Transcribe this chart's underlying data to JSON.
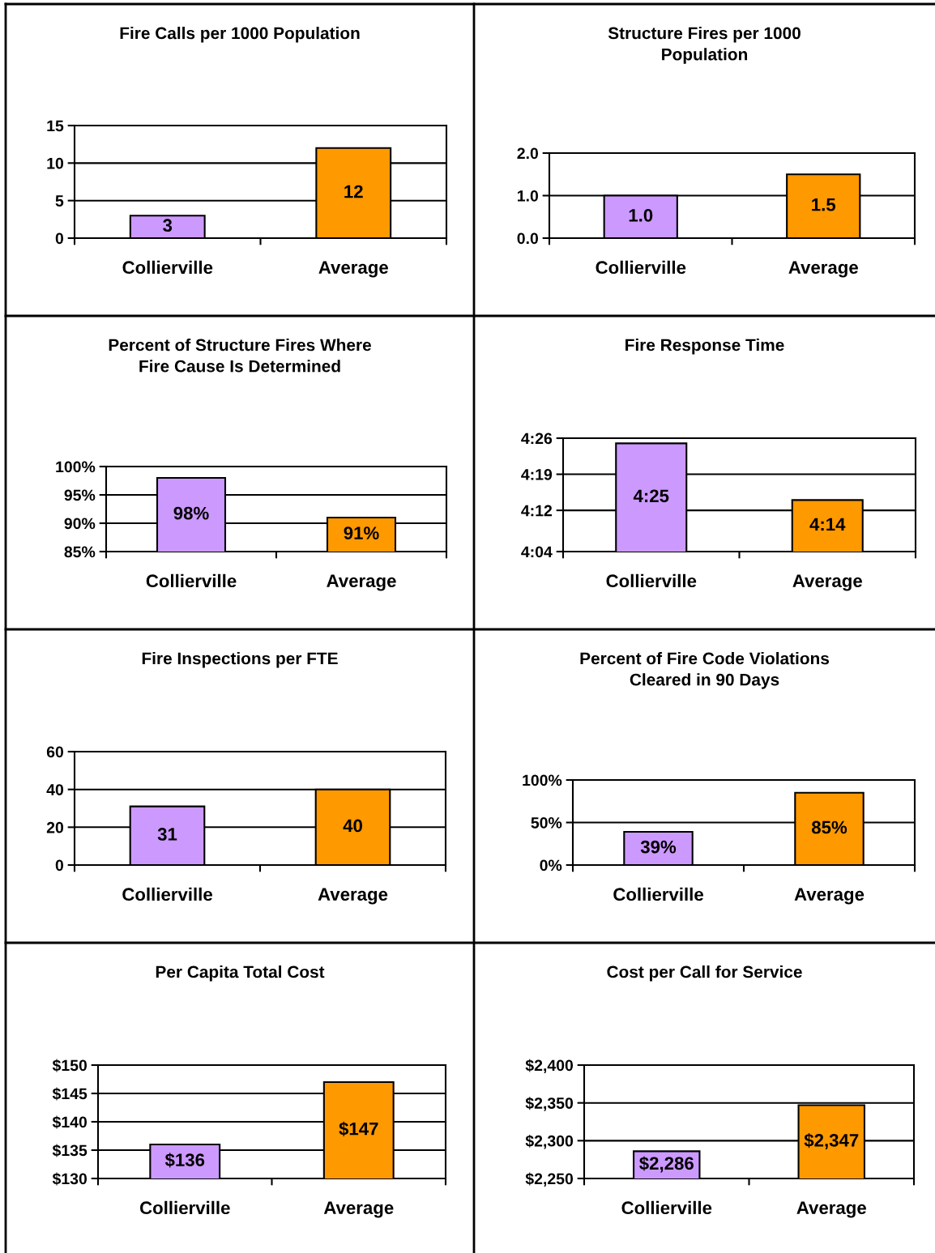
{
  "chart_data": [
    {
      "type": "bar",
      "title": "Fire Calls per 1000 Population",
      "categories": [
        "Collierville",
        "Average"
      ],
      "values": [
        3,
        12
      ],
      "colors": [
        "#cc99ff",
        "#ff9900"
      ],
      "ylim": [
        0,
        15
      ],
      "yticks": [
        0,
        5,
        10,
        15
      ],
      "grid": "y",
      "value_labels": [
        "3",
        "12"
      ]
    },
    {
      "type": "bar",
      "title": "Structure Fires per 1000\nPopulation",
      "categories": [
        "Collierville",
        "Average"
      ],
      "values": [
        1.0,
        1.5
      ],
      "colors": [
        "#cc99ff",
        "#ff9900"
      ],
      "ylim": [
        0,
        2
      ],
      "yticks": [
        {
          "value": 0,
          "label": "0.0"
        },
        {
          "value": 1,
          "label": "1.0"
        },
        {
          "value": 2,
          "label": "2.0"
        }
      ],
      "grid": "y",
      "value_labels": [
        "1.0",
        "1.5"
      ]
    },
    {
      "type": "bar",
      "title": "Percent of Structure Fires Where\nFire Cause Is Determined",
      "categories": [
        "Collierville",
        "Average"
      ],
      "values": [
        98,
        91
      ],
      "colors": [
        "#cc99ff",
        "#ff9900"
      ],
      "ylim": [
        85,
        100
      ],
      "yticks": [
        {
          "value": 85,
          "label": "85%"
        },
        {
          "value": 90,
          "label": "90%"
        },
        {
          "value": 95,
          "label": "95%"
        },
        {
          "value": 100,
          "label": "100%"
        }
      ],
      "grid": "y",
      "value_labels": [
        "98%",
        "91%"
      ]
    },
    {
      "type": "bar",
      "title": "Fire Response Time",
      "categories": [
        "Collierville",
        "Average"
      ],
      "values": [
        4.4167,
        4.2333
      ],
      "colors": [
        "#cc99ff",
        "#ff9900"
      ],
      "ylim": [
        4.0667,
        4.4333
      ],
      "yticks": [
        {
          "value": 4.0667,
          "label": "4:04"
        },
        {
          "value": 4.2,
          "label": "4:12"
        },
        {
          "value": 4.3167,
          "label": "4:19"
        },
        {
          "value": 4.4333,
          "label": "4:26"
        }
      ],
      "grid": "y",
      "value_labels": [
        "4:25",
        "4:14"
      ]
    },
    {
      "type": "bar",
      "title": "Fire Inspections per FTE",
      "categories": [
        "Collierville",
        "Average"
      ],
      "values": [
        31,
        40
      ],
      "colors": [
        "#cc99ff",
        "#ff9900"
      ],
      "ylim": [
        0,
        60
      ],
      "yticks": [
        0,
        20,
        40,
        60
      ],
      "grid": "y",
      "value_labels": [
        "31",
        "40"
      ]
    },
    {
      "type": "bar",
      "title": "Percent of Fire Code Violations\nCleared in 90 Days",
      "categories": [
        "Collierville",
        "Average"
      ],
      "values": [
        39,
        85
      ],
      "colors": [
        "#cc99ff",
        "#ff9900"
      ],
      "ylim": [
        0,
        100
      ],
      "yticks": [
        {
          "value": 0,
          "label": "0%"
        },
        {
          "value": 50,
          "label": "50%"
        },
        {
          "value": 100,
          "label": "100%"
        }
      ],
      "grid": "y",
      "value_labels": [
        "39%",
        "85%"
      ]
    },
    {
      "type": "bar",
      "title": "Per Capita Total Cost",
      "categories": [
        "Collierville",
        "Average"
      ],
      "values": [
        136,
        147
      ],
      "colors": [
        "#cc99ff",
        "#ff9900"
      ],
      "ylim": [
        130,
        150
      ],
      "yticks": [
        {
          "value": 130,
          "label": "$130"
        },
        {
          "value": 135,
          "label": "$135"
        },
        {
          "value": 140,
          "label": "$140"
        },
        {
          "value": 145,
          "label": "$145"
        },
        {
          "value": 150,
          "label": "$150"
        }
      ],
      "grid": "y",
      "value_labels": [
        "$136",
        "$147"
      ]
    },
    {
      "type": "bar",
      "title": "Cost per Call for Service",
      "categories": [
        "Collierville",
        "Average"
      ],
      "values": [
        2286,
        2347
      ],
      "colors": [
        "#cc99ff",
        "#ff9900"
      ],
      "ylim": [
        2250,
        2400
      ],
      "yticks": [
        {
          "value": 2250,
          "label": "$2,250"
        },
        {
          "value": 2300,
          "label": "$2,300"
        },
        {
          "value": 2350,
          "label": "$2,350"
        },
        {
          "value": 2400,
          "label": "$2,400"
        }
      ],
      "grid": "y",
      "value_labels": [
        "$2,286",
        "$2,347"
      ]
    }
  ]
}
